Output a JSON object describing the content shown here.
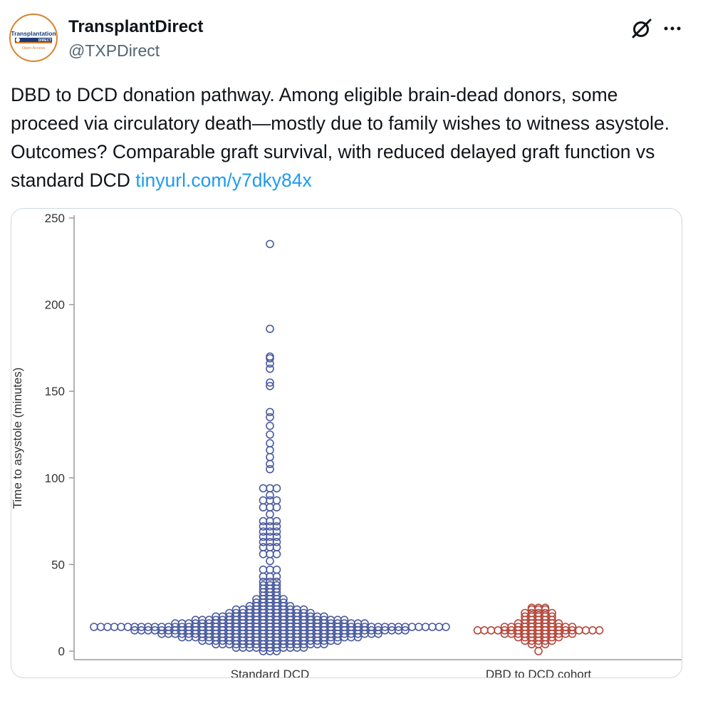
{
  "tweet": {
    "author": {
      "display_name": "TransplantDirect",
      "handle": "@TXPDirect",
      "avatar_icon": "transplantation-direct-logo",
      "avatar_text": {
        "line1": "Transplantation",
        "line2": "DIRECT",
        "line3": "Open Access"
      }
    },
    "actions": {
      "grok_icon": "grok-slash-icon",
      "more_icon": "more-horizontal-icon"
    },
    "text": "DBD to DCD donation pathway. Among eligible brain-dead donors, some proceed via circulatory death—mostly due to family wishes to witness asystole. Outcomes? Comparable graft survival, with reduced delayed graft function vs standard DCD",
    "link": "tinyurl.com/y7dky84x"
  },
  "chart_data": {
    "type": "scatter",
    "subtype": "beeswarm",
    "title": "",
    "xlabel": "",
    "ylabel": "Time to asystole (minutes)",
    "ylim": [
      0,
      250
    ],
    "yticks": [
      0,
      50,
      100,
      150,
      200,
      250
    ],
    "categories": [
      "Standard DCD",
      "DBD to DCD cohort"
    ],
    "colors": {
      "Standard DCD": "#4a5a9e",
      "DBD to DCD cohort": "#b5473a"
    },
    "series": [
      {
        "name": "Standard DCD",
        "bin_width": 2,
        "swarm": [
          {
            "y": 0,
            "count": 3
          },
          {
            "y": 2,
            "count": 11
          },
          {
            "y": 4,
            "count": 17
          },
          {
            "y": 6,
            "count": 21
          },
          {
            "y": 8,
            "count": 27
          },
          {
            "y": 10,
            "count": 33
          },
          {
            "y": 12,
            "count": 41
          },
          {
            "y": 14,
            "count": 53
          },
          {
            "y": 16,
            "count": 29
          },
          {
            "y": 18,
            "count": 23
          },
          {
            "y": 20,
            "count": 17
          },
          {
            "y": 22,
            "count": 13
          },
          {
            "y": 24,
            "count": 11
          },
          {
            "y": 26,
            "count": 7
          },
          {
            "y": 28,
            "count": 5
          },
          {
            "y": 30,
            "count": 5
          },
          {
            "y": 32,
            "count": 3
          },
          {
            "y": 34,
            "count": 3
          },
          {
            "y": 36,
            "count": 3
          },
          {
            "y": 38,
            "count": 3
          },
          {
            "y": 40,
            "count": 3
          },
          {
            "y": 43,
            "count": 3
          },
          {
            "y": 47,
            "count": 3
          },
          {
            "y": 52,
            "count": 1
          },
          {
            "y": 56,
            "count": 3
          },
          {
            "y": 60,
            "count": 3
          },
          {
            "y": 63,
            "count": 3
          },
          {
            "y": 66,
            "count": 3
          },
          {
            "y": 69,
            "count": 3
          },
          {
            "y": 72,
            "count": 3
          },
          {
            "y": 75,
            "count": 3
          },
          {
            "y": 79,
            "count": 1
          },
          {
            "y": 83,
            "count": 3
          },
          {
            "y": 87,
            "count": 3
          },
          {
            "y": 90,
            "count": 1
          },
          {
            "y": 94,
            "count": 3
          },
          {
            "y": 105,
            "count": 1
          },
          {
            "y": 108,
            "count": 1
          },
          {
            "y": 112,
            "count": 1
          },
          {
            "y": 116,
            "count": 1
          },
          {
            "y": 120,
            "count": 1
          },
          {
            "y": 125,
            "count": 1
          },
          {
            "y": 130,
            "count": 1
          },
          {
            "y": 135,
            "count": 1
          },
          {
            "y": 138,
            "count": 1
          },
          {
            "y": 153,
            "count": 1
          },
          {
            "y": 155,
            "count": 1
          },
          {
            "y": 163,
            "count": 1
          },
          {
            "y": 166,
            "count": 1
          },
          {
            "y": 169,
            "count": 1
          },
          {
            "y": 170,
            "count": 1
          },
          {
            "y": 186,
            "count": 1
          },
          {
            "y": 235,
            "count": 1
          }
        ]
      },
      {
        "name": "DBD to DCD cohort",
        "bin_width": 2,
        "swarm": [
          {
            "y": 0,
            "count": 1
          },
          {
            "y": 4,
            "count": 3
          },
          {
            "y": 6,
            "count": 5
          },
          {
            "y": 8,
            "count": 7
          },
          {
            "y": 10,
            "count": 11
          },
          {
            "y": 12,
            "count": 19
          },
          {
            "y": 14,
            "count": 11
          },
          {
            "y": 16,
            "count": 7
          },
          {
            "y": 18,
            "count": 5
          },
          {
            "y": 20,
            "count": 5
          },
          {
            "y": 22,
            "count": 5
          },
          {
            "y": 24,
            "count": 3
          },
          {
            "y": 25,
            "count": 3
          }
        ]
      }
    ]
  }
}
